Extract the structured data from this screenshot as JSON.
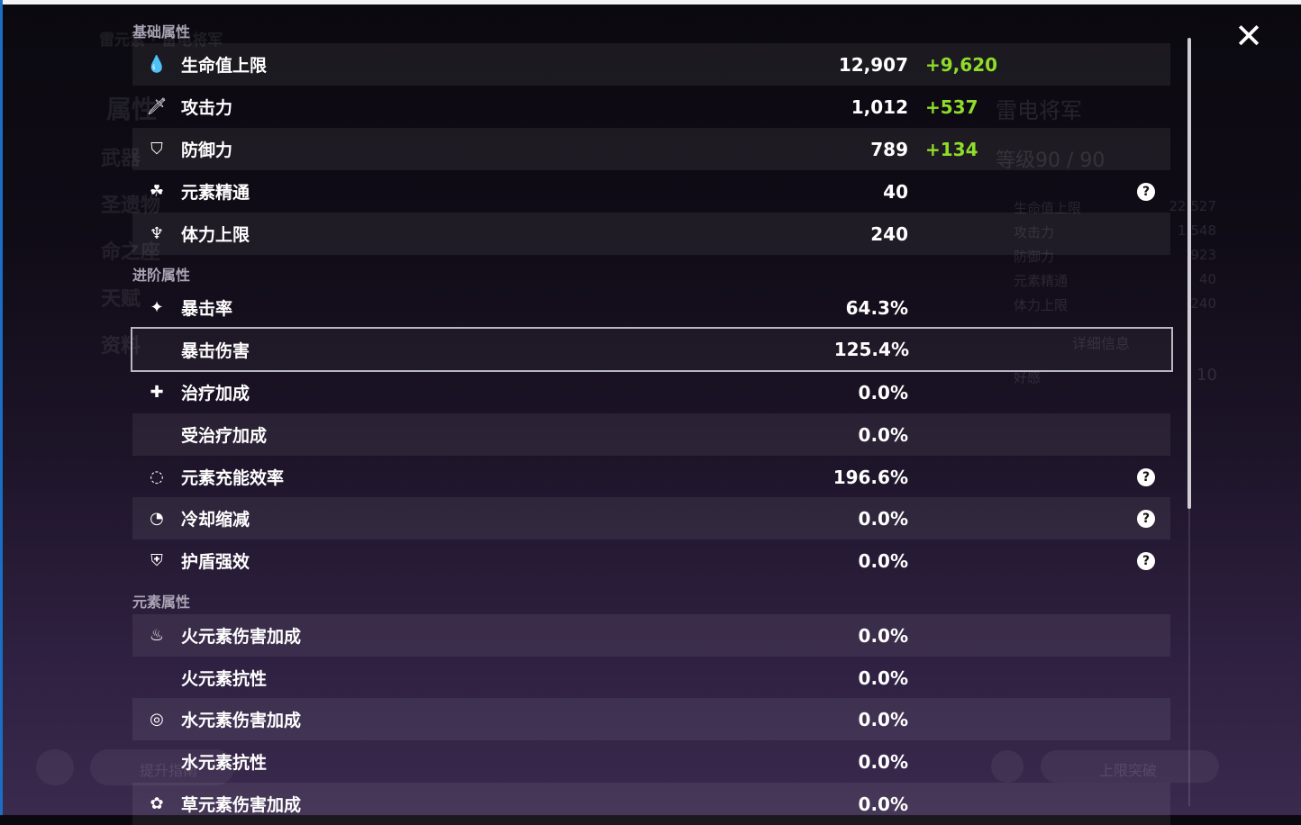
{
  "background": {
    "title": "雷元素 · 雷电将军",
    "menu": [
      "属性",
      "武器",
      "圣遗物",
      "命之座",
      "天赋",
      "资料"
    ],
    "char_name": "雷电将军",
    "level": "等级90 / 90",
    "summary": [
      {
        "label": "生命值上限",
        "value": "22,527"
      },
      {
        "label": "攻击力",
        "value": "1,548"
      },
      {
        "label": "防御力",
        "value": "923"
      },
      {
        "label": "元素精通",
        "value": "40"
      },
      {
        "label": "体力上限",
        "value": "240"
      }
    ],
    "details_button": "详细信息",
    "friendship_label": "好感",
    "friendship_value": "10",
    "ascend_button": "上限突破",
    "guide_button": "提升指南"
  },
  "colors": {
    "bonus": "#8fdc2a",
    "selected_border": "#b9b7bf"
  },
  "sections": [
    {
      "title": "基础属性",
      "rows": [
        {
          "icon": "hp-drop-icon",
          "glyph": "💧",
          "label": "生命值上限",
          "value": "12,907",
          "bonus": "+9,620"
        },
        {
          "icon": "sword-icon",
          "glyph": "🗡",
          "label": "攻击力",
          "value": "1,012",
          "bonus": "+537"
        },
        {
          "icon": "shield-icon",
          "glyph": "⛉",
          "label": "防御力",
          "value": "789",
          "bonus": "+134"
        },
        {
          "icon": "elemental-mastery-icon",
          "glyph": "☘",
          "label": "元素精通",
          "value": "40",
          "help": true
        },
        {
          "icon": "stamina-icon",
          "glyph": "♆",
          "label": "体力上限",
          "value": "240"
        }
      ]
    },
    {
      "title": "进阶属性",
      "rows": [
        {
          "icon": "crit-rate-icon",
          "glyph": "✦",
          "label": "暴击率",
          "value": "64.3%"
        },
        {
          "icon": "",
          "glyph": "",
          "label": "暴击伤害",
          "value": "125.4%",
          "selected": true
        },
        {
          "icon": "healing-cross-icon",
          "glyph": "✚",
          "label": "治疗加成",
          "value": "0.0%"
        },
        {
          "icon": "",
          "glyph": "",
          "label": "受治疗加成",
          "value": "0.0%"
        },
        {
          "icon": "energy-recharge-icon",
          "glyph": "◌",
          "label": "元素充能效率",
          "value": "196.6%",
          "help": true
        },
        {
          "icon": "cooldown-icon",
          "glyph": "◔",
          "label": "冷却缩减",
          "value": "0.0%",
          "help": true
        },
        {
          "icon": "shield-strength-icon",
          "glyph": "⛨",
          "label": "护盾强效",
          "value": "0.0%",
          "help": true
        }
      ]
    },
    {
      "title": "元素属性",
      "rows": [
        {
          "icon": "pyro-icon",
          "glyph": "♨",
          "label": "火元素伤害加成",
          "value": "0.0%"
        },
        {
          "icon": "",
          "glyph": "",
          "label": "火元素抗性",
          "value": "0.0%"
        },
        {
          "icon": "hydro-icon",
          "glyph": "◎",
          "label": "水元素伤害加成",
          "value": "0.0%"
        },
        {
          "icon": "",
          "glyph": "",
          "label": "水元素抗性",
          "value": "0.0%"
        },
        {
          "icon": "dendro-icon",
          "glyph": "✿",
          "label": "草元素伤害加成",
          "value": "0.0%"
        }
      ]
    }
  ],
  "help_glyph": "?",
  "close_glyph": "✕"
}
